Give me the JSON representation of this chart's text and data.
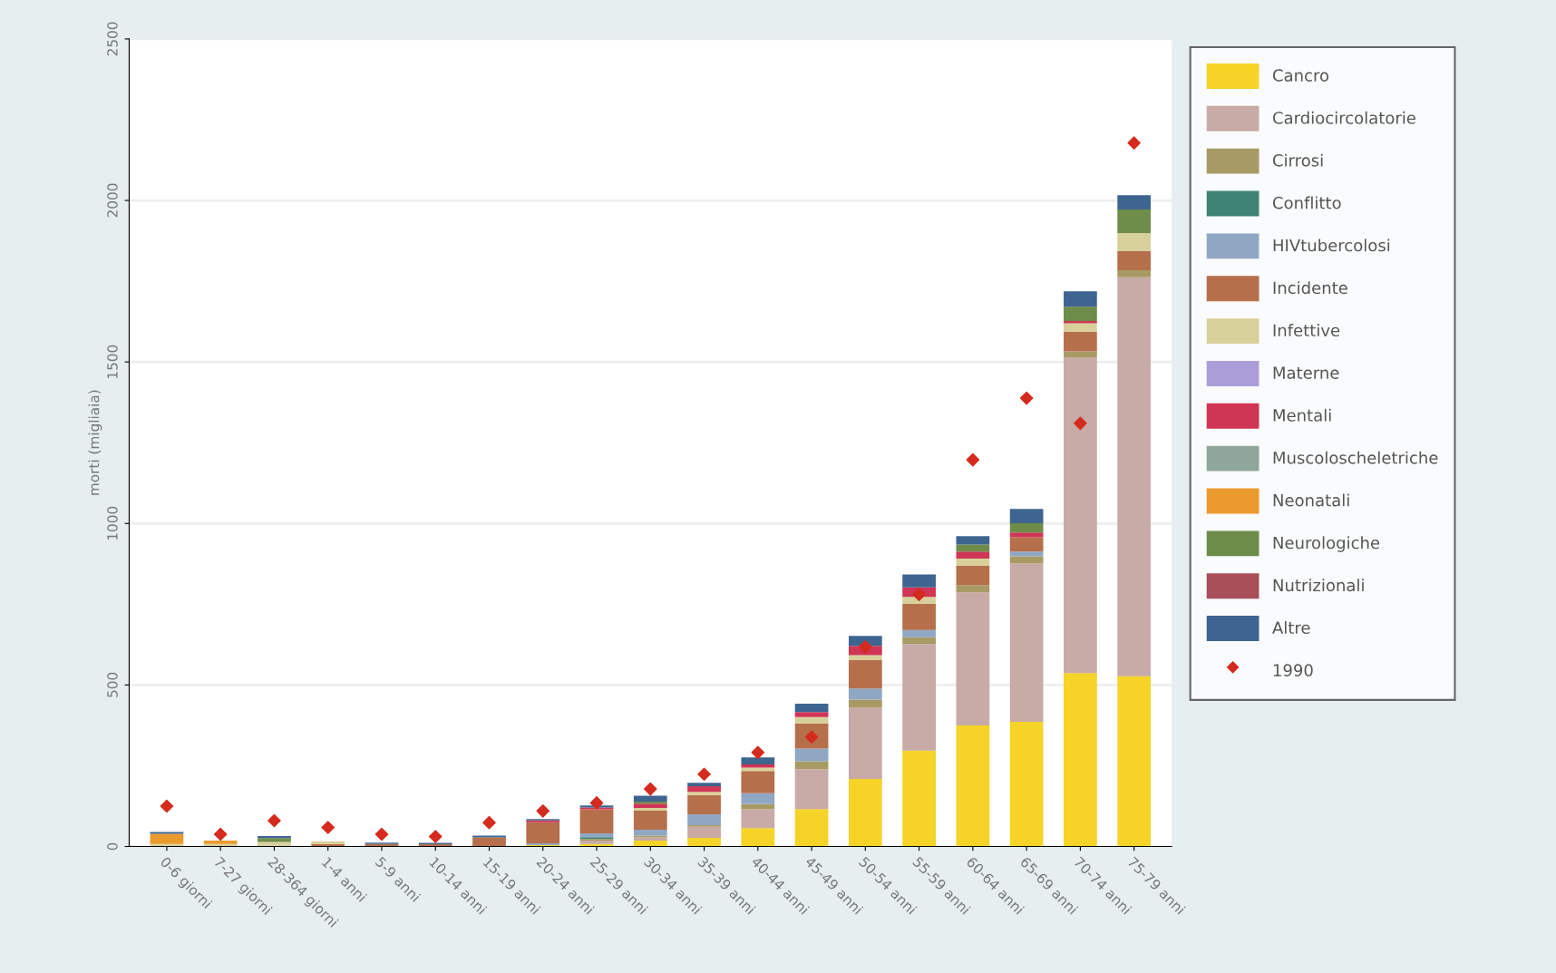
{
  "chart_data": {
    "type": "bar",
    "stacked": true,
    "ylabel": "morti (migliaia)",
    "categories": [
      "0-6 giorni",
      "7-27 giorni",
      "28-364 giorni",
      "1-4 anni",
      "5-9 anni",
      "10-14 anni",
      "15-19 anni",
      "20-24 anni",
      "25-29 anni",
      "30-34 anni",
      "35-39 anni",
      "40-44 anni",
      "45-49 anni",
      "50-54 anni",
      "55-59 anni",
      "60-64 anni",
      "65-69 anni",
      "70-74 anni",
      "75-79 anni"
    ],
    "series": [
      {
        "name": "Cancro",
        "color": "#f5d327",
        "values": [
          0,
          0,
          0,
          0,
          0,
          0,
          0,
          4,
          8,
          18,
          27,
          57,
          116,
          209,
          297,
          375,
          386,
          537,
          527
        ]
      },
      {
        "name": "Cardiocircolatorie",
        "color": "#c8aaa6",
        "values": [
          0,
          0,
          0,
          0,
          0,
          0,
          0,
          0,
          10,
          10,
          34,
          59,
          123,
          221,
          329,
          412,
          490,
          976,
          1235
        ]
      },
      {
        "name": "Cirrosi",
        "color": "#a89a64",
        "values": [
          0,
          0,
          0,
          0,
          0,
          0,
          0,
          0,
          5,
          6,
          5,
          15,
          25,
          25,
          22,
          22,
          22,
          20,
          22
        ]
      },
      {
        "name": "Conflitto",
        "color": "#3f8374",
        "values": [
          0,
          0,
          0,
          0,
          0,
          0,
          0,
          0,
          6,
          0,
          0,
          0,
          0,
          0,
          0,
          0,
          0,
          0,
          0
        ]
      },
      {
        "name": "HIVtubercolosi",
        "color": "#8fa7c3",
        "values": [
          0,
          0,
          0,
          0,
          0,
          0,
          0,
          6,
          12,
          18,
          34,
          34,
          39,
          34,
          22,
          0,
          15,
          0,
          0
        ]
      },
      {
        "name": "Incidente",
        "color": "#b56f4b",
        "values": [
          0,
          0,
          0,
          8,
          8,
          7,
          28,
          65,
          74,
          59,
          59,
          69,
          78,
          88,
          81,
          60,
          44,
          60,
          59
        ]
      },
      {
        "name": "Infettive",
        "color": "#d8d09a",
        "values": [
          8,
          8,
          14,
          8,
          0,
          0,
          0,
          0,
          0,
          8,
          10,
          10,
          20,
          15,
          22,
          22,
          0,
          27,
          56
        ]
      },
      {
        "name": "Materne",
        "color": "#a99ed8",
        "values": [
          0,
          0,
          0,
          0,
          0,
          0,
          0,
          0,
          0,
          0,
          0,
          0,
          0,
          0,
          0,
          0,
          0,
          0,
          0
        ]
      },
      {
        "name": "Mentali",
        "color": "#cf3555",
        "values": [
          0,
          0,
          0,
          0,
          0,
          0,
          0,
          6,
          6,
          14,
          18,
          10,
          15,
          29,
          29,
          22,
          15,
          7,
          0
        ]
      },
      {
        "name": "Muscoloscheletriche",
        "color": "#8fa69b",
        "values": [
          0,
          0,
          0,
          0,
          0,
          0,
          0,
          0,
          0,
          0,
          0,
          0,
          0,
          0,
          0,
          0,
          0,
          0,
          0
        ]
      },
      {
        "name": "Neonatali",
        "color": "#eb9a2e",
        "values": [
          31,
          10,
          0,
          0,
          0,
          0,
          0,
          0,
          0,
          0,
          0,
          0,
          0,
          0,
          0,
          0,
          0,
          0,
          0
        ]
      },
      {
        "name": "Neurologiche",
        "color": "#6e8c4a",
        "values": [
          0,
          0,
          12,
          0,
          0,
          0,
          0,
          0,
          0,
          6,
          0,
          0,
          0,
          0,
          0,
          22,
          29,
          44,
          73
        ]
      },
      {
        "name": "Nutrizionali",
        "color": "#a84f5a",
        "values": [
          0,
          0,
          0,
          0,
          0,
          0,
          0,
          0,
          0,
          0,
          0,
          0,
          0,
          0,
          0,
          0,
          0,
          0,
          0
        ]
      },
      {
        "name": "Altre",
        "color": "#3e6590",
        "values": [
          6,
          0,
          6,
          0,
          4,
          4,
          6,
          4,
          6,
          18,
          10,
          22,
          26,
          31,
          40,
          26,
          44,
          48,
          44
        ]
      },
      {
        "name": "1990",
        "type": "scatter",
        "marker": "diamond",
        "color": "#d42b1e",
        "values": [
          125,
          38,
          80,
          59,
          38,
          31,
          74,
          110,
          135,
          178,
          224,
          291,
          339,
          618,
          780,
          1197,
          1388,
          1310,
          2178
        ]
      }
    ],
    "ylim": [
      0,
      2500
    ],
    "yticks": [
      0,
      500,
      1000,
      1500,
      2000,
      2500
    ],
    "grid": "y",
    "legend": "right"
  }
}
